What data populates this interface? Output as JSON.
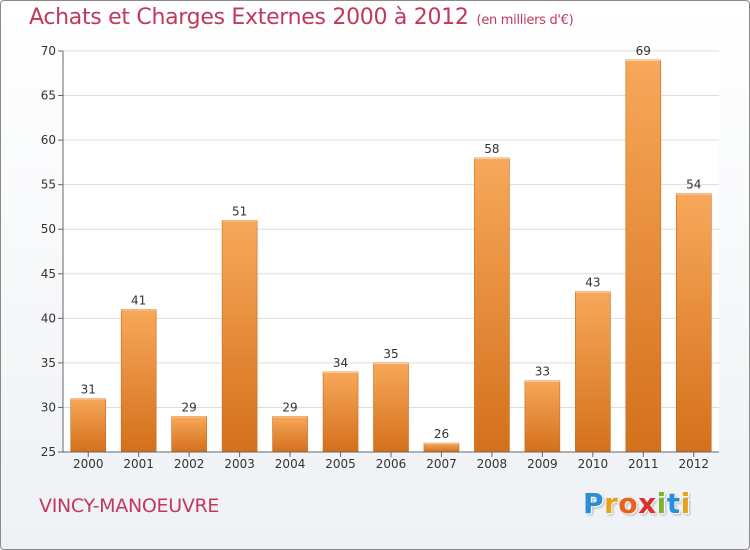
{
  "header": {
    "title": "Achats et Charges Externes 2000 à 2012",
    "unit": "(en milliers d'€)"
  },
  "footer": {
    "city": "VINCY-MANOEUVRE",
    "logo": "Proxiti"
  },
  "logo_letters": [
    {
      "ch": "P",
      "color": "#2a8fd6"
    },
    {
      "ch": "r",
      "color": "#e5a21a"
    },
    {
      "ch": "o",
      "color": "#e8601c"
    },
    {
      "ch": "x",
      "color": "#d9322b"
    },
    {
      "ch": "i",
      "color": "#7bb32e"
    },
    {
      "ch": "t",
      "color": "#2a8fd6"
    },
    {
      "ch": "i",
      "color": "#e5a21a"
    }
  ],
  "colors": {
    "bar_top": "#f7a85a",
    "bar_bottom": "#d4701c",
    "accent": "#c0395a",
    "grid": "#dddddd"
  },
  "chart_data": {
    "type": "bar",
    "categories": [
      "2000",
      "2001",
      "2002",
      "2003",
      "2004",
      "2005",
      "2006",
      "2007",
      "2008",
      "2009",
      "2010",
      "2011",
      "2012"
    ],
    "values": [
      31,
      41,
      29,
      51,
      29,
      34,
      35,
      26,
      58,
      33,
      43,
      69,
      54
    ],
    "yticks": [
      25,
      30,
      35,
      40,
      45,
      50,
      55,
      60,
      65,
      70
    ],
    "ylim": [
      25,
      70
    ],
    "title": "Achats et Charges Externes 2000 à 2012",
    "xlabel": "",
    "ylabel": ""
  }
}
